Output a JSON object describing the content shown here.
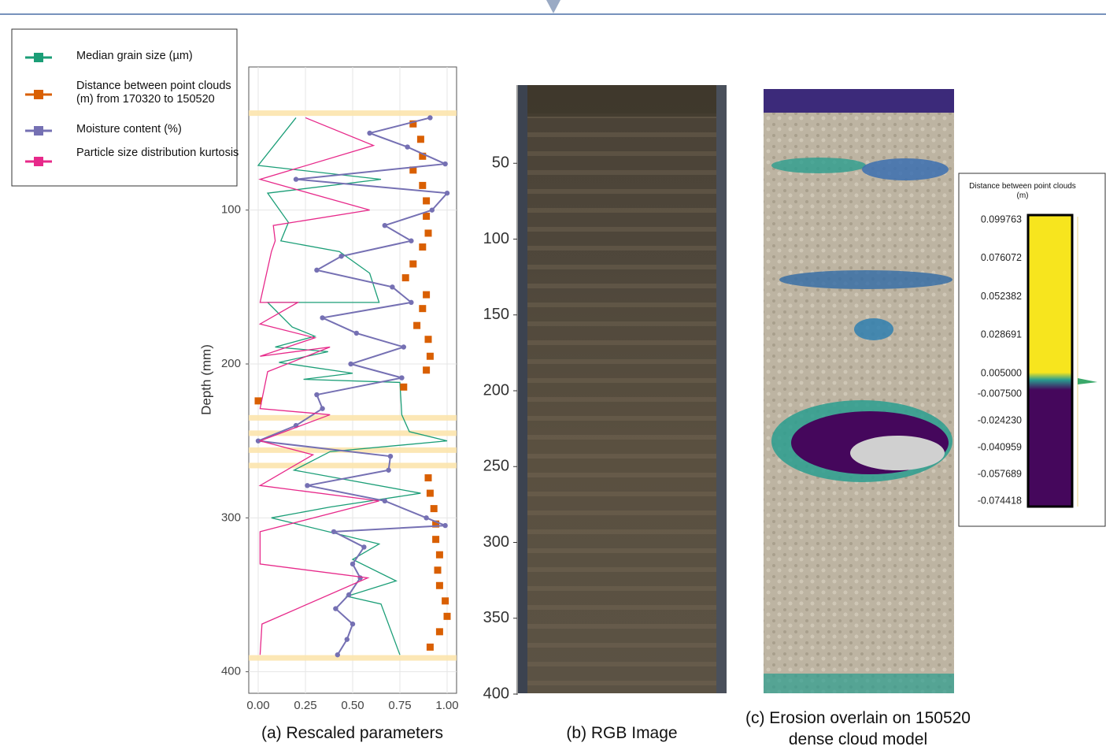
{
  "chart_data": [
    {
      "type": "line",
      "title": "(a) Rescaled parameters",
      "y_label": "Depth (mm)",
      "xlim": [
        -0.05,
        1.05
      ],
      "ylim": [
        7,
        414
      ],
      "y_inverted": true,
      "grid": true,
      "xticks": [
        {
          "value": 0,
          "label": "0.00"
        },
        0.25,
        {
          "value": 0.5,
          "label": "0.50"
        },
        0.75,
        {
          "value": 1,
          "label": "1.00"
        }
      ],
      "yticks": [
        100,
        200,
        300,
        400
      ],
      "highlight_depths": [
        37,
        235,
        245,
        256,
        266,
        391
      ],
      "highlight_color": "#fbe3a8",
      "series": [
        {
          "name": "Median grain size (µm)",
          "color": "#1b9e77",
          "style": "line",
          "depth": [
            40,
            71,
            80,
            89,
            108,
            120,
            127,
            141,
            160,
            160,
            176,
            182,
            189,
            192,
            199,
            206,
            210,
            212,
            233,
            244,
            250,
            257,
            269,
            284,
            293,
            300,
            317,
            327,
            341,
            351,
            356,
            389
          ],
          "values": [
            0.2,
            0.0,
            0.65,
            0.05,
            0.16,
            0.12,
            0.43,
            0.59,
            0.64,
            0.05,
            0.18,
            0.3,
            0.09,
            0.37,
            0.11,
            0.5,
            0.24,
            0.75,
            0.76,
            0.8,
            1.0,
            0.38,
            0.19,
            0.86,
            0.38,
            0.07,
            0.64,
            0.5,
            0.73,
            0.47,
            0.65,
            0.75
          ]
        },
        {
          "name": "Distance between point clouds (m) from 170320 to 150520",
          "color": "#d95f02",
          "style": "points",
          "depth": [
            44,
            54,
            65,
            74,
            84,
            94,
            104,
            115,
            124,
            135,
            144,
            155,
            164,
            175,
            184,
            195,
            204,
            215,
            224,
            274,
            284,
            294,
            304,
            314,
            324,
            334,
            344,
            354,
            364,
            374,
            384
          ],
          "values": [
            0.82,
            0.86,
            0.87,
            0.82,
            0.87,
            0.89,
            0.89,
            0.9,
            0.87,
            0.82,
            0.78,
            0.89,
            0.87,
            0.84,
            0.9,
            0.91,
            0.89,
            0.77,
            0.0,
            0.9,
            0.91,
            0.93,
            0.94,
            0.94,
            0.96,
            0.95,
            0.96,
            0.99,
            1.0,
            0.96,
            0.91
          ]
        },
        {
          "name": "Moisture content (%)",
          "color": "#7570b3",
          "style": "line-points",
          "depth": [
            40,
            50,
            59,
            70,
            80,
            89,
            100,
            110,
            120,
            130,
            139,
            150,
            160,
            170,
            180,
            189,
            200,
            209,
            220,
            229,
            240,
            250,
            260,
            269,
            279,
            289,
            300,
            305,
            309,
            319,
            330,
            339,
            350,
            359,
            369,
            379,
            389
          ],
          "values": [
            0.91,
            0.59,
            0.79,
            0.99,
            0.2,
            1.0,
            0.92,
            0.67,
            0.81,
            0.44,
            0.31,
            0.71,
            0.81,
            0.34,
            0.52,
            0.77,
            0.49,
            0.76,
            0.31,
            0.34,
            0.2,
            0.0,
            0.7,
            0.69,
            0.26,
            0.67,
            0.89,
            0.99,
            0.4,
            0.56,
            0.5,
            0.54,
            0.48,
            0.41,
            0.5,
            0.47,
            0.42
          ]
        },
        {
          "name": "Particle size distribution kurtosis",
          "color": "#e7298a",
          "style": "line",
          "depth": [
            40,
            58,
            80,
            100,
            110,
            120,
            127,
            160,
            160,
            174,
            183,
            195,
            189,
            205,
            229,
            233,
            250,
            259,
            279,
            289,
            309,
            330,
            339,
            369,
            389
          ],
          "values": [
            0.25,
            0.61,
            0.01,
            0.59,
            0.08,
            0.09,
            0.07,
            0.01,
            0.21,
            0.01,
            0.3,
            0.01,
            0.38,
            0.05,
            0.01,
            0.38,
            0.01,
            0.29,
            0.01,
            0.64,
            0.01,
            0.01,
            0.58,
            0.02,
            0.01
          ]
        }
      ]
    },
    {
      "type": "image",
      "title": "(b) RGB Image",
      "ylim": [
        0,
        400
      ],
      "yticks": [
        50,
        100,
        150,
        200,
        250,
        300,
        350,
        400
      ]
    },
    {
      "type": "image",
      "title": "(c) Erosion overlain on 150520 dense cloud model",
      "colorbar": {
        "title": "Distance between point clouds (m)",
        "colors": [
          "#f7e51e",
          "#2a9d8f",
          "#45075c"
        ],
        "ticks": [
          0.099763,
          0.076072,
          0.052382,
          0.028691,
          {
            "value": 0.005,
            "label": "0.005000"
          },
          {
            "value": -0.0075,
            "label": "-0.007500"
          },
          {
            "value": -0.02423,
            "label": "-0.024230"
          },
          -0.040959,
          -0.057689,
          -0.074418
        ]
      }
    }
  ]
}
